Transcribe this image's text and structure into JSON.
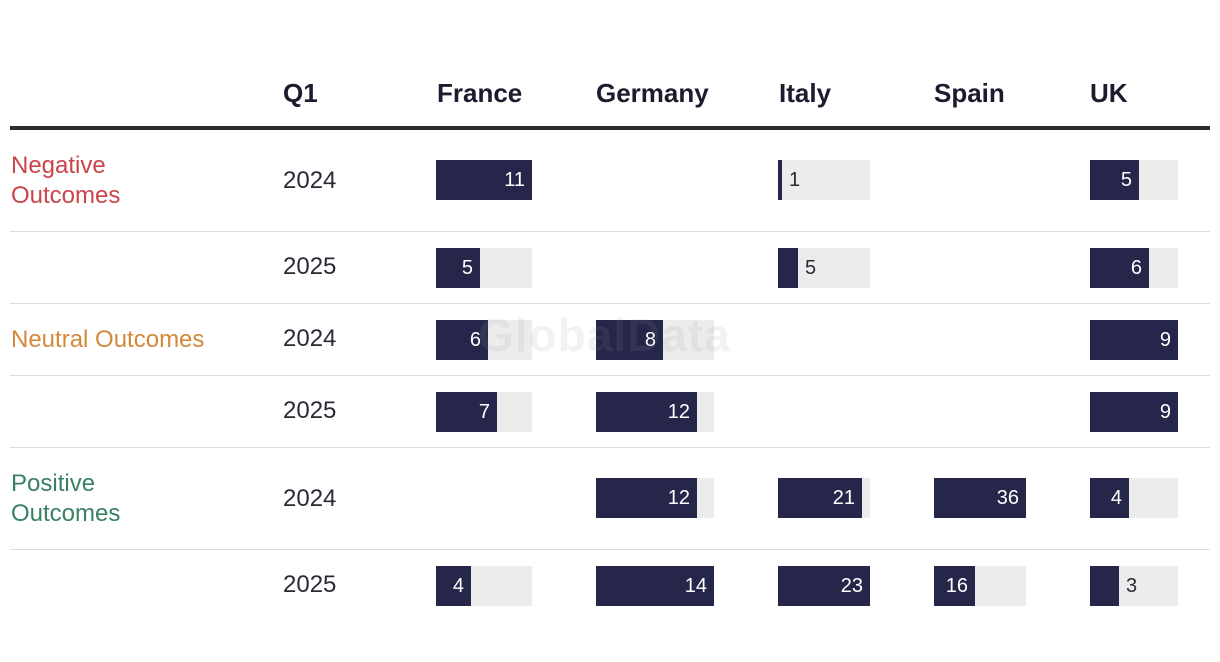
{
  "watermark": "GlobalData",
  "header": {
    "quarter_label": "Q1",
    "countries": [
      "France",
      "Germany",
      "Italy",
      "Spain",
      "UK"
    ]
  },
  "colors": {
    "bar": "#26264a",
    "track": "#ececec",
    "negative": "#c9454a",
    "neutral": "#d4893a",
    "positive": "#3a8062"
  },
  "chart_data": {
    "type": "table",
    "columns": [
      "France",
      "Germany",
      "Italy",
      "Spain",
      "UK"
    ],
    "column_max": [
      11,
      14,
      23,
      36,
      9
    ],
    "groups": [
      {
        "label": "Negative\nOutcomes",
        "color": "#c9454a",
        "rows": [
          {
            "year": "2024",
            "values": [
              11,
              null,
              1,
              null,
              5
            ]
          },
          {
            "year": "2025",
            "values": [
              5,
              null,
              5,
              null,
              6
            ]
          }
        ]
      },
      {
        "label": "Neutral Outcomes",
        "color": "#d4893a",
        "rows": [
          {
            "year": "2024",
            "values": [
              6,
              8,
              null,
              null,
              9
            ]
          },
          {
            "year": "2025",
            "values": [
              7,
              12,
              null,
              null,
              9
            ]
          }
        ]
      },
      {
        "label": "Positive\nOutcomes",
        "color": "#3a8062",
        "rows": [
          {
            "year": "2024",
            "values": [
              null,
              12,
              21,
              36,
              4
            ]
          },
          {
            "year": "2025",
            "values": [
              4,
              14,
              23,
              16,
              3
            ]
          }
        ]
      }
    ]
  }
}
